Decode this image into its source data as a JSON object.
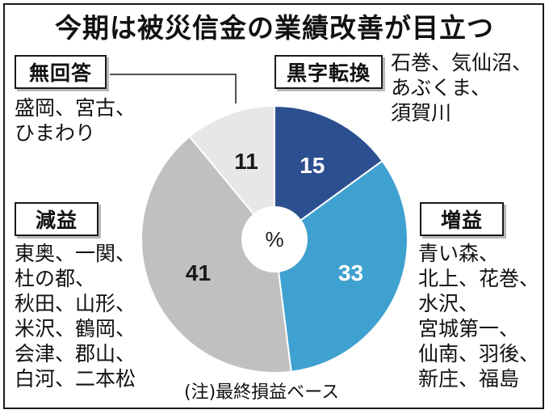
{
  "title": "今期は被災信金の業績改善が目立つ",
  "footnote": "(注)最終損益ベース",
  "chart_data": {
    "type": "pie",
    "center_label": "%",
    "slices": [
      {
        "label": "黒字転換",
        "value": 15,
        "color": "#2c4f8f",
        "text_color": "#ffffff"
      },
      {
        "label": "増益",
        "value": 33,
        "color": "#3fa1cf",
        "text_color": "#ffffff"
      },
      {
        "label": "減益",
        "value": 41,
        "color": "#c0c0c0",
        "text_color": "#1a1a1a"
      },
      {
        "label": "無回答",
        "value": 11,
        "color": "#e7e7e7",
        "text_color": "#1a1a1a"
      }
    ]
  },
  "categories": {
    "kuroji": {
      "label": "黒字転換",
      "names": "石巻、気仙沼、\nあぶくま、\n須賀川"
    },
    "zoueki": {
      "label": "増益",
      "names": "青い森、\n北上、花巻、\n水沢、\n宮城第一、\n仙南、羽後、\n新庄、福島"
    },
    "geneki": {
      "label": "減益",
      "names": "東奥、一関、\n杜の都、\n秋田、山形、\n米沢、鶴岡、\n会津、郡山、\n白河、二本松"
    },
    "mukaito": {
      "label": "無回答",
      "names": "盛岡、宮古、\nひまわり"
    }
  }
}
